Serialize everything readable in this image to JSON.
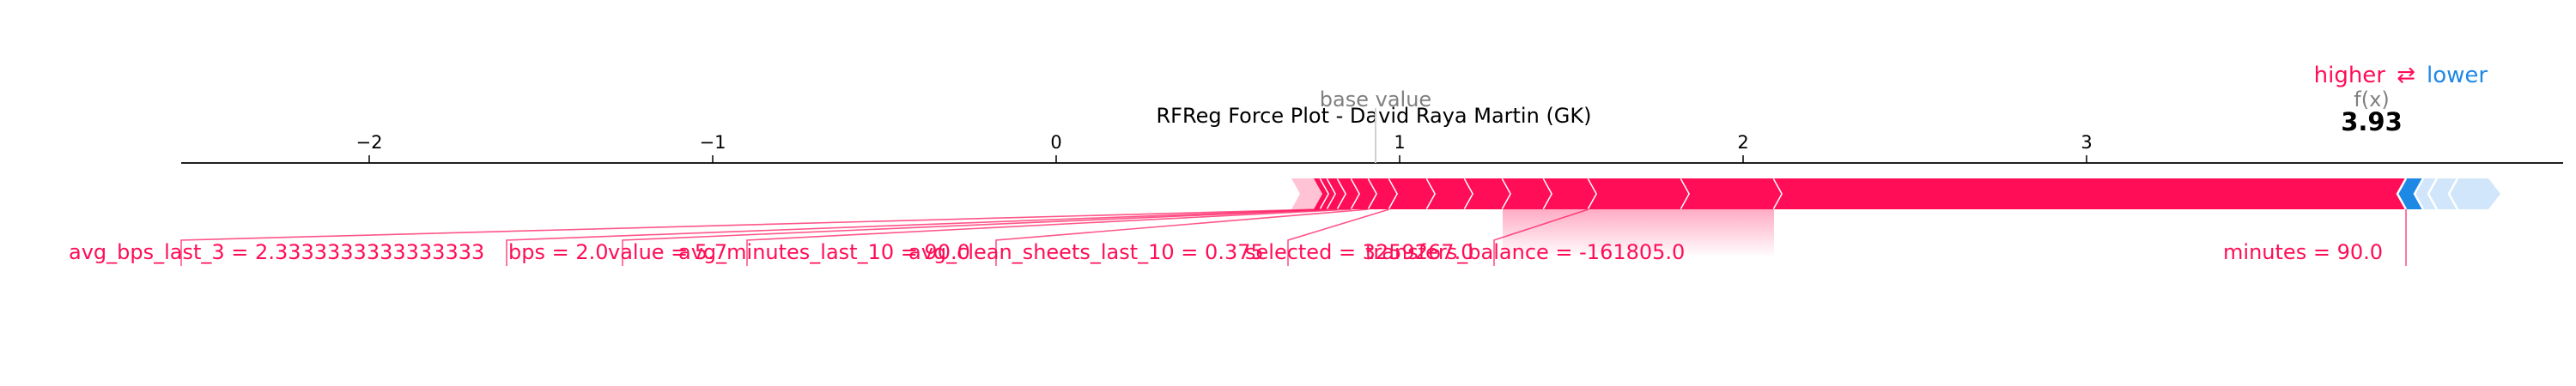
{
  "chart_data": {
    "type": "force",
    "title": "RFReg Force Plot - David Raya Martin (GK)",
    "legend": {
      "higher": "higher",
      "arrow": "⇄",
      "lower": "lower"
    },
    "base_value_label": "base value",
    "fx_label": "f(x)",
    "fx_value_text": "3.93",
    "base_value": 0.93,
    "output_value": 3.93,
    "xlim": [
      -2.55,
      4.4
    ],
    "ticks": [
      -2,
      -1,
      0,
      1,
      2,
      3
    ],
    "tick_labels": [
      "−2",
      "−1",
      "0",
      "1",
      "2",
      "3"
    ],
    "positive_segments": [
      0.75,
      0.77,
      0.79,
      0.82,
      0.86,
      0.91,
      0.97,
      1.08,
      1.19,
      1.3,
      1.42,
      1.55,
      1.82,
      2.09,
      3.93
    ],
    "negative_segments": [
      3.93,
      3.98,
      4.02,
      4.08,
      4.17
    ],
    "labels": [
      {
        "text": "avg_bps_last_3 = 2.3333333333333333",
        "x": -2.55,
        "anchor": "-2.55"
      },
      {
        "text": "bps = 2.0",
        "x": -1.6
      },
      {
        "text": "value = 5.7",
        "x": -1.25
      },
      {
        "text": "avg_minutes_last_10 = 90.0",
        "x": -0.88
      },
      {
        "text": "avg_clean_sheets_last_10 = 0.375",
        "x": -0.15
      },
      {
        "text": "selected = 3259267.0",
        "x": 0.7
      },
      {
        "text": "transfers_balance = -161805.0",
        "x": 1.3
      },
      {
        "text": "minutes = 90.0",
        "x": 3.93
      }
    ],
    "colors": {
      "positive": "#ff0d57",
      "positive_light": "#ffc3d5",
      "negative": "#1e88e5",
      "negative_light": "#d1e6fa",
      "axis": "#000000",
      "muted": "#808080"
    }
  }
}
